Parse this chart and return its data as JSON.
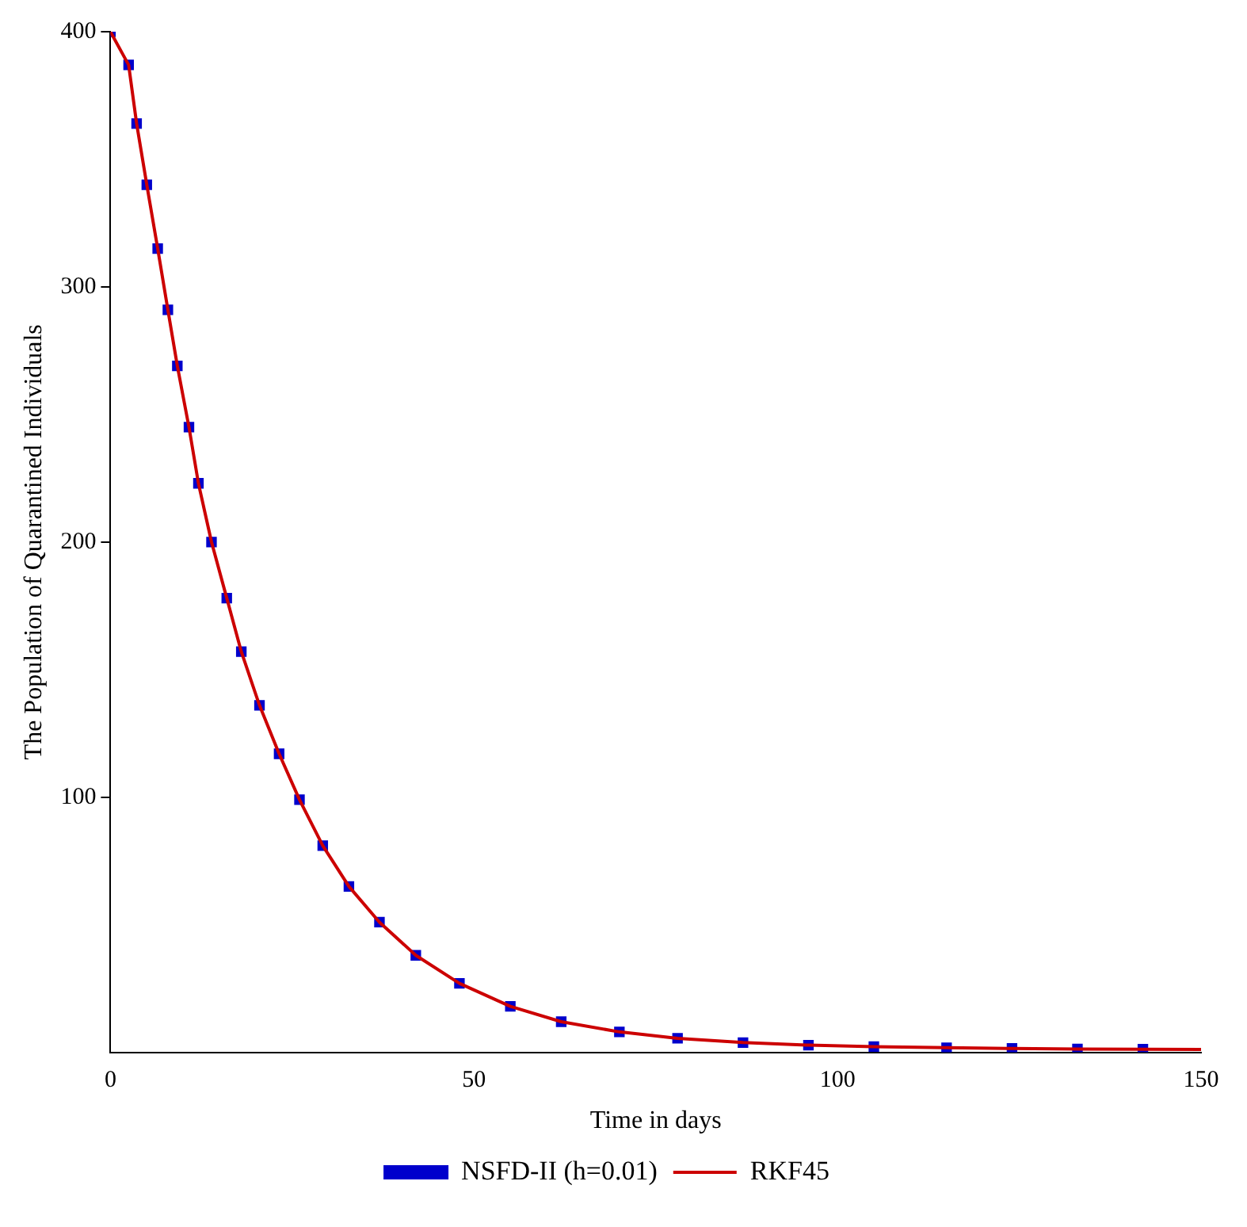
{
  "chart_data": {
    "type": "line",
    "xlabel": "Time in days",
    "ylabel": "The Population of Quarantined Individuals",
    "xlim": [
      0,
      150
    ],
    "ylim": [
      0,
      400
    ],
    "xticks": [
      0,
      50,
      100,
      150
    ],
    "yticks": [
      100,
      200,
      300,
      400
    ],
    "grid": false,
    "legend": "bottom",
    "series": [
      {
        "name": "NSFD-II (h=0.01)",
        "type": "scatter",
        "marker": "square",
        "color": "#0000cc",
        "x": [
          0,
          2.5,
          3.6,
          5,
          6.5,
          7.9,
          9.2,
          10.8,
          12.1,
          13.9,
          16,
          18,
          20.5,
          23.2,
          26,
          29.2,
          32.8,
          37,
          42,
          48,
          55,
          62,
          70,
          78,
          87,
          96,
          105,
          115,
          124,
          133,
          142
        ],
        "values": [
          400,
          387,
          364,
          340,
          315,
          291,
          269,
          245,
          223,
          200,
          178,
          157,
          136,
          117,
          99,
          81,
          65,
          51,
          38,
          27,
          18,
          12,
          8,
          5.5,
          3.8,
          2.8,
          2.2,
          1.8,
          1.5,
          1.3,
          1.2
        ]
      },
      {
        "name": "RKF45",
        "type": "line",
        "marker": "none",
        "line_style": "solid",
        "color": "#cc0000",
        "x": [
          0,
          2.5,
          3.6,
          5,
          6.5,
          7.9,
          9.2,
          10.8,
          12.1,
          13.9,
          16,
          18,
          20.5,
          23.2,
          26,
          29.2,
          32.8,
          37,
          42,
          48,
          55,
          62,
          70,
          78,
          87,
          96,
          105,
          115,
          124,
          133,
          142,
          150
        ],
        "values": [
          400,
          387,
          364,
          340,
          315,
          291,
          269,
          245,
          223,
          200,
          178,
          157,
          136,
          117,
          99,
          81,
          65,
          51,
          38,
          27,
          18,
          12,
          8,
          5.5,
          3.8,
          2.8,
          2.2,
          1.8,
          1.5,
          1.3,
          1.2,
          1.1
        ]
      }
    ]
  }
}
